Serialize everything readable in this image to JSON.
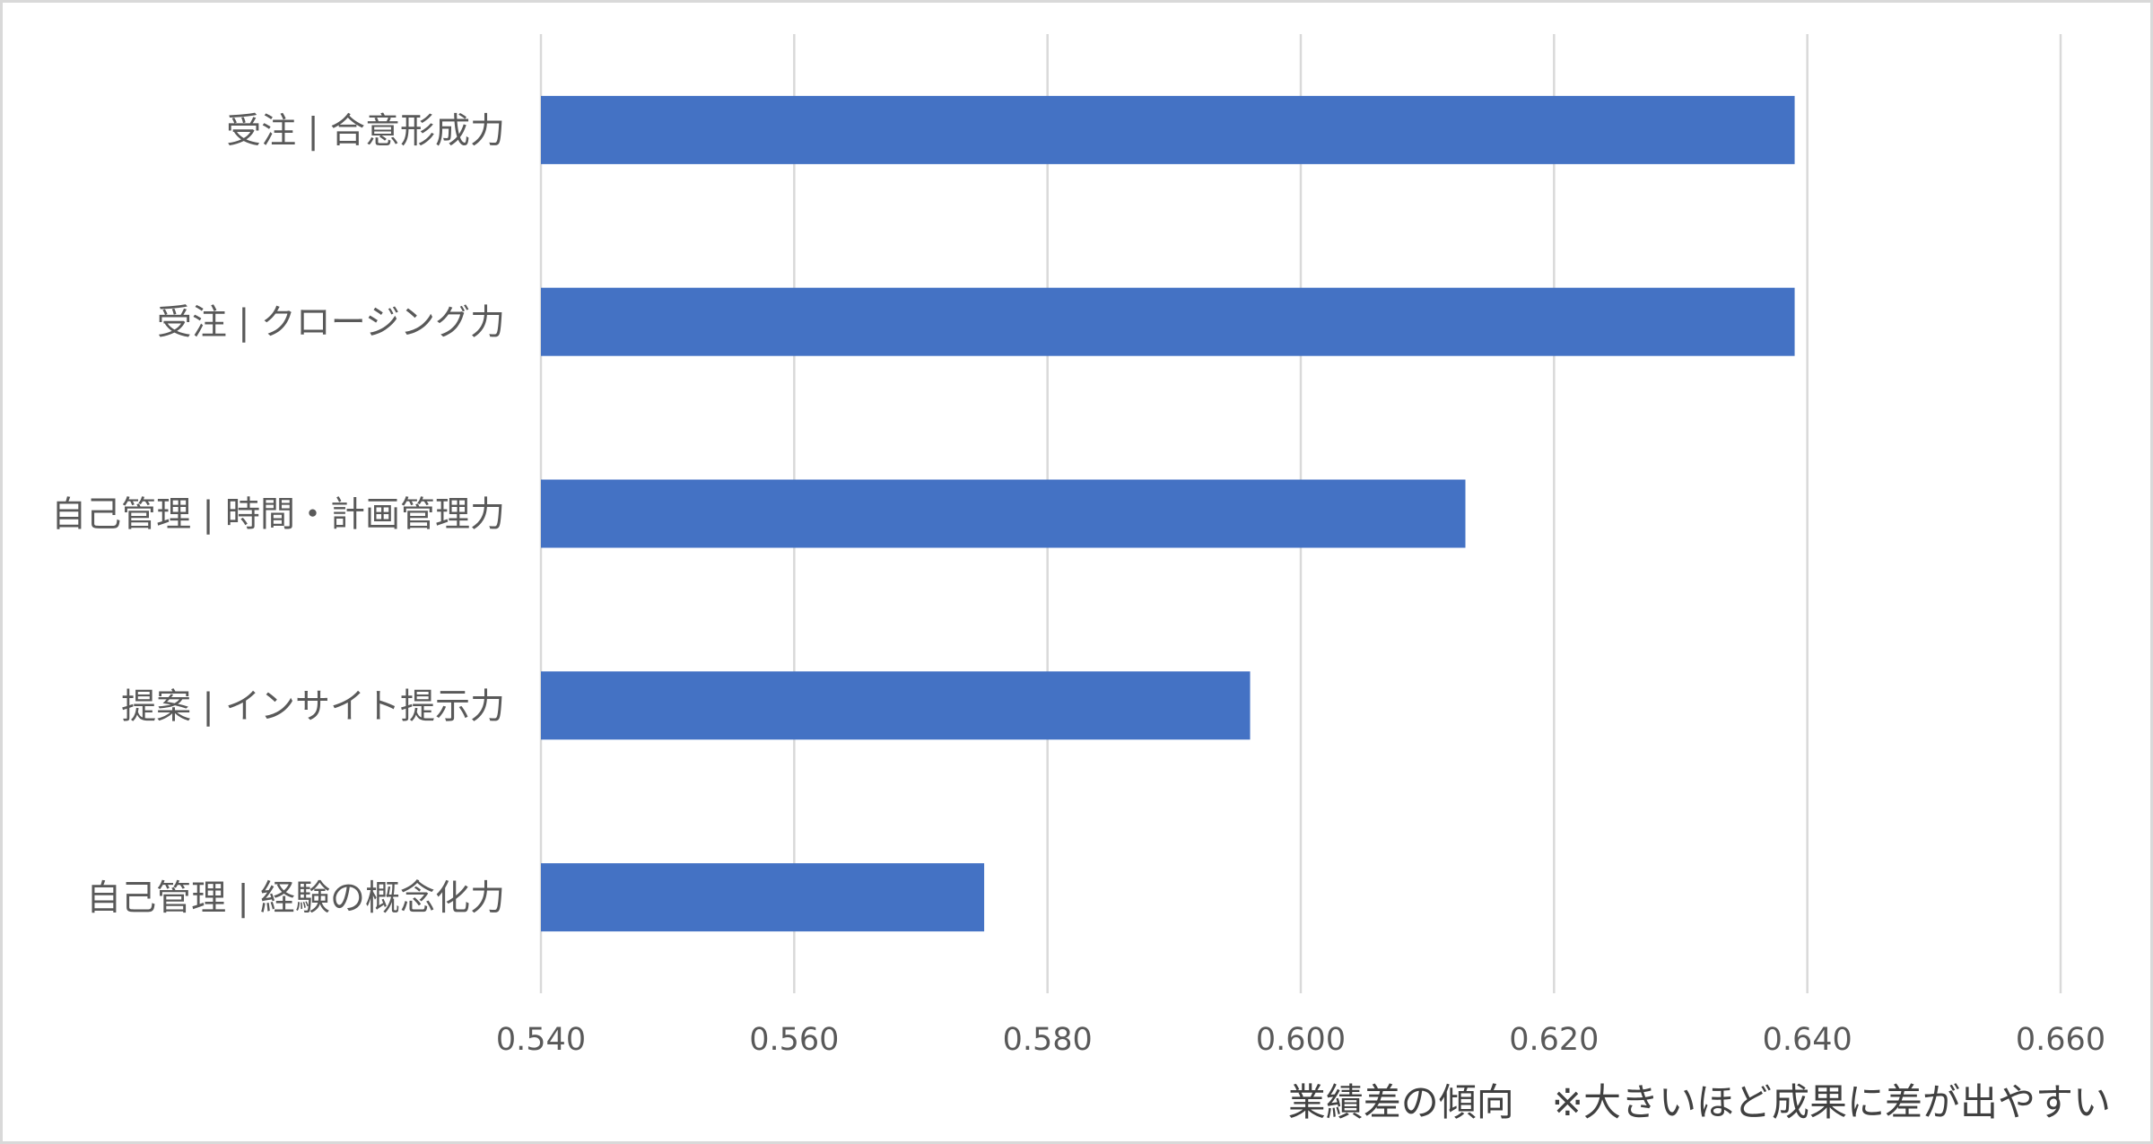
{
  "chart_data": {
    "type": "bar",
    "orientation": "horizontal",
    "categories": [
      "受注 | 合意形成力",
      "受注 | クロージング力",
      "自己管理 | 時間・計画管理力",
      "提案 | インサイト提示力",
      "自己管理 | 経験の概念化力"
    ],
    "values": [
      0.639,
      0.639,
      0.613,
      0.596,
      0.575
    ],
    "xlim": [
      0.54,
      0.66
    ],
    "xticks": [
      "0.540",
      "0.560",
      "0.580",
      "0.600",
      "0.620",
      "0.640",
      "0.660"
    ],
    "xlabel": "業績差の傾向　※大きいほど成果に差が出やすい",
    "ylabel": "",
    "title": "",
    "grid": "vertical",
    "bar_color": "#4472c4",
    "grid_color": "#d9d9d9"
  }
}
